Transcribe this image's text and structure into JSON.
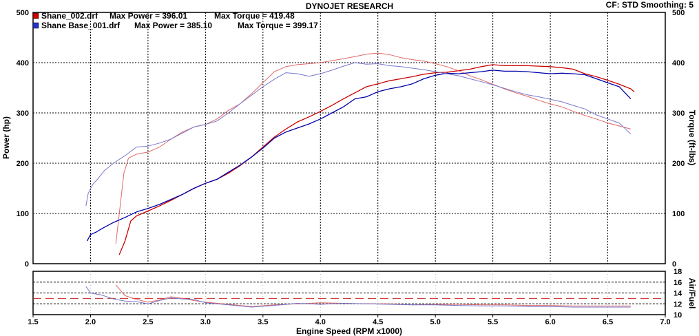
{
  "header": {
    "title": "DYNOJET RESEARCH",
    "cf_label": "CF: STD  Smoothing: 5"
  },
  "colors": {
    "run1": "#cc0000",
    "run1_light": "#e06666",
    "run2": "#0000aa",
    "run2_light": "#7777cc",
    "grid": "#000000",
    "afr_ref": "#cc2222"
  },
  "legend": [
    {
      "file": "Shane_002.drf",
      "power_text": "Max Power = 396.01",
      "torque_text": "Max Torque = 419.48"
    },
    {
      "file": "Shane Base_001.drf",
      "power_text": "Max Power = 385.10",
      "torque_text": "Max Torque = 399.17"
    }
  ],
  "chart_data": [
    {
      "type": "line",
      "xlabel": "Engine Speed (RPM x1000)",
      "ylabel": "Power (hp)",
      "y2label": "Torque (ft-lbs)",
      "xlim": [
        1.5,
        7.0
      ],
      "ylim": [
        0,
        500
      ],
      "y2lim": [
        0,
        500
      ],
      "x_ticks": [
        "1.5",
        "2.0",
        "2.5",
        "3.0",
        "3.5",
        "4.0",
        "4.5",
        "5.0",
        "5.5",
        "6.0",
        "6.5",
        "7.0"
      ],
      "y_ticks": [
        "0",
        "100",
        "200",
        "300",
        "400",
        "500"
      ],
      "y2_ticks": [
        "0",
        "100",
        "200",
        "300",
        "400",
        "500"
      ],
      "series": [
        {
          "name": "Shane_002.drf Power",
          "run": 1,
          "kind": "power",
          "x": [
            2.25,
            2.3,
            2.35,
            2.4,
            2.5,
            2.6,
            2.7,
            2.8,
            2.9,
            3.0,
            3.1,
            3.2,
            3.3,
            3.4,
            3.5,
            3.6,
            3.7,
            3.8,
            3.9,
            4.0,
            4.1,
            4.2,
            4.3,
            4.4,
            4.5,
            4.6,
            4.7,
            4.8,
            4.9,
            5.0,
            5.1,
            5.2,
            5.3,
            5.4,
            5.5,
            5.6,
            5.7,
            5.8,
            5.9,
            6.0,
            6.1,
            6.2,
            6.3,
            6.4,
            6.5,
            6.6,
            6.7,
            6.73
          ],
          "values": [
            18,
            45,
            85,
            95,
            105,
            115,
            126,
            138,
            150,
            160,
            168,
            180,
            195,
            212,
            232,
            252,
            268,
            282,
            292,
            303,
            315,
            328,
            340,
            352,
            358,
            364,
            368,
            372,
            377,
            380,
            381,
            384,
            387,
            392,
            396,
            394,
            394,
            394,
            393,
            392,
            390,
            387,
            378,
            372,
            365,
            357,
            348,
            342
          ]
        },
        {
          "name": "Shane_002.drf Torque",
          "run": 1,
          "kind": "torque",
          "x": [
            2.22,
            2.26,
            2.29,
            2.33,
            2.4,
            2.5,
            2.6,
            2.7,
            2.8,
            2.9,
            3.0,
            3.1,
            3.2,
            3.3,
            3.4,
            3.5,
            3.6,
            3.7,
            3.8,
            3.9,
            4.0,
            4.1,
            4.2,
            4.3,
            4.4,
            4.5,
            4.6,
            4.7,
            4.8,
            4.9,
            5.0,
            5.1,
            5.2,
            5.3,
            5.4,
            5.5,
            5.6,
            5.7,
            5.8,
            5.9,
            6.0,
            6.1,
            6.2,
            6.3,
            6.4,
            6.5,
            6.6,
            6.7
          ],
          "values": [
            40,
            120,
            180,
            210,
            218,
            222,
            232,
            248,
            262,
            272,
            277,
            288,
            305,
            318,
            338,
            360,
            382,
            392,
            396,
            398,
            400,
            404,
            408,
            412,
            417,
            419,
            416,
            410,
            406,
            403,
            398,
            392,
            384,
            374,
            366,
            357,
            348,
            340,
            333,
            325,
            318,
            312,
            303,
            295,
            288,
            280,
            274,
            268
          ]
        },
        {
          "name": "Shane Base_001.drf Power",
          "run": 2,
          "kind": "power",
          "x": [
            1.97,
            2.0,
            2.05,
            2.1,
            2.2,
            2.3,
            2.4,
            2.5,
            2.6,
            2.7,
            2.8,
            2.9,
            3.0,
            3.1,
            3.2,
            3.3,
            3.4,
            3.5,
            3.6,
            3.7,
            3.8,
            3.9,
            4.0,
            4.1,
            4.2,
            4.3,
            4.4,
            4.5,
            4.6,
            4.7,
            4.8,
            4.9,
            5.0,
            5.1,
            5.2,
            5.3,
            5.4,
            5.5,
            5.6,
            5.7,
            5.8,
            5.9,
            6.0,
            6.1,
            6.2,
            6.3,
            6.4,
            6.5,
            6.6,
            6.7
          ],
          "values": [
            45,
            58,
            63,
            70,
            82,
            92,
            103,
            110,
            118,
            128,
            138,
            150,
            160,
            168,
            182,
            196,
            212,
            230,
            250,
            262,
            270,
            278,
            288,
            300,
            312,
            328,
            332,
            342,
            348,
            352,
            358,
            368,
            375,
            379,
            378,
            380,
            382,
            385,
            383,
            383,
            382,
            380,
            378,
            379,
            378,
            376,
            368,
            360,
            352,
            328
          ]
        },
        {
          "name": "Shane Base_001.drf Torque",
          "run": 2,
          "kind": "torque",
          "x": [
            1.96,
            1.98,
            2.02,
            2.06,
            2.12,
            2.2,
            2.3,
            2.4,
            2.5,
            2.6,
            2.7,
            2.8,
            2.9,
            3.0,
            3.1,
            3.2,
            3.3,
            3.4,
            3.5,
            3.6,
            3.7,
            3.8,
            3.9,
            4.0,
            4.1,
            4.2,
            4.3,
            4.4,
            4.5,
            4.6,
            4.7,
            4.8,
            4.9,
            5.0,
            5.1,
            5.2,
            5.3,
            5.4,
            5.5,
            5.6,
            5.7,
            5.8,
            5.9,
            6.0,
            6.1,
            6.2,
            6.3,
            6.4,
            6.5,
            6.6,
            6.7
          ],
          "values": [
            115,
            140,
            158,
            168,
            185,
            200,
            215,
            232,
            234,
            240,
            248,
            260,
            272,
            277,
            284,
            300,
            318,
            335,
            352,
            367,
            380,
            378,
            373,
            378,
            385,
            393,
            400,
            397,
            398,
            394,
            392,
            389,
            386,
            382,
            378,
            374,
            368,
            362,
            356,
            349,
            342,
            336,
            332,
            327,
            322,
            315,
            308,
            296,
            288,
            280,
            258
          ]
        }
      ]
    },
    {
      "type": "line",
      "ylabel": "Air/Fuel",
      "xlim": [
        1.5,
        7.0
      ],
      "ylim": [
        10,
        18
      ],
      "y_ticks": [
        "10",
        "12",
        "14",
        "16",
        "18"
      ],
      "reference_lines": [
        12,
        13,
        14,
        16
      ],
      "series": [
        {
          "name": "Shane_002.drf Air/Fuel",
          "run": 1,
          "x": [
            2.22,
            2.3,
            2.4,
            2.5,
            2.6,
            2.7,
            2.8,
            2.9,
            3.0,
            3.2,
            3.4,
            3.6,
            3.8,
            4.0,
            4.2,
            4.4,
            4.6,
            4.8,
            5.0,
            5.2,
            5.4,
            5.6,
            5.8,
            6.0,
            6.2,
            6.4,
            6.6,
            6.7
          ],
          "values": [
            15.5,
            13.5,
            12.8,
            12.3,
            12.7,
            13.3,
            13.0,
            12.6,
            12.3,
            11.9,
            11.5,
            11.8,
            12.0,
            12.2,
            12.1,
            12.0,
            12.0,
            11.8,
            11.9,
            11.9,
            11.8,
            11.8,
            11.7,
            11.7,
            11.6,
            11.6,
            11.6,
            11.6
          ]
        },
        {
          "name": "Shane Base_001.drf Air/Fuel",
          "run": 2,
          "x": [
            1.96,
            2.0,
            2.1,
            2.2,
            2.3,
            2.4,
            2.5,
            2.6,
            2.7,
            2.8,
            2.9,
            3.0,
            3.2,
            3.4,
            3.6,
            3.8,
            4.0,
            4.2,
            4.4,
            4.6,
            4.8,
            5.0,
            5.2,
            5.4,
            5.6,
            5.8,
            6.0,
            6.2,
            6.4,
            6.6,
            6.7
          ],
          "values": [
            15.2,
            14.0,
            13.6,
            12.9,
            12.5,
            12.4,
            12.0,
            12.6,
            13.1,
            12.9,
            12.8,
            12.2,
            11.8,
            11.4,
            11.7,
            12.1,
            11.9,
            12.1,
            12.0,
            11.9,
            11.8,
            11.8,
            11.7,
            11.6,
            11.6,
            11.5,
            11.5,
            11.4,
            11.4,
            11.4,
            11.4
          ]
        }
      ]
    }
  ]
}
